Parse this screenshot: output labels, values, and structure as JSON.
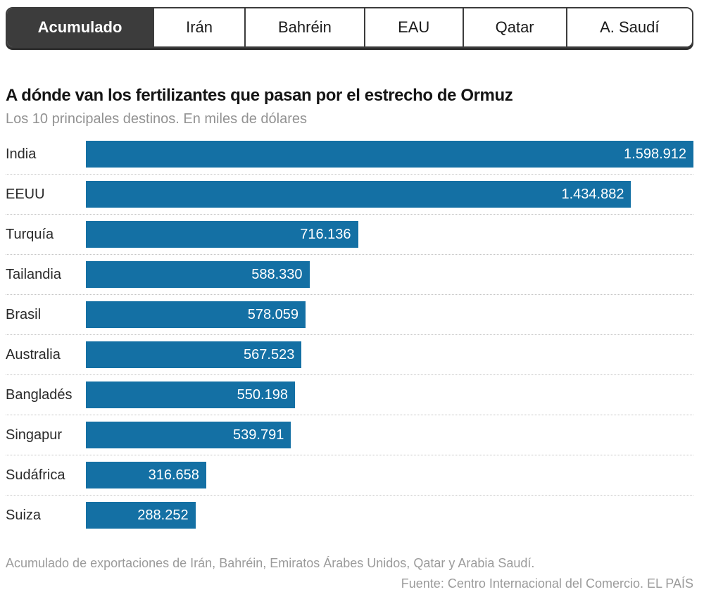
{
  "tabs": [
    {
      "label": "Acumulado",
      "active": true
    },
    {
      "label": "Irán",
      "active": false
    },
    {
      "label": "Bahréin",
      "active": false
    },
    {
      "label": "EAU",
      "active": false
    },
    {
      "label": "Qatar",
      "active": false
    },
    {
      "label": "A. Saudí",
      "active": false
    }
  ],
  "chart_data": {
    "type": "bar",
    "orientation": "horizontal",
    "title": "A dónde van los fertilizantes que pasan por el estrecho de Ormuz",
    "subtitle": "Los 10 principales destinos. En miles de dólares",
    "categories": [
      "India",
      "EEUU",
      "Turquía",
      "Tailandia",
      "Brasil",
      "Australia",
      "Bangladés",
      "Singapur",
      "Sudáfrica",
      "Suiza"
    ],
    "values": [
      1598912,
      1434882,
      716136,
      588330,
      578059,
      567523,
      550198,
      539791,
      316658,
      288252
    ],
    "value_labels": [
      "1.598.912",
      "1.434.882",
      "716.136",
      "588.330",
      "578.059",
      "567.523",
      "550.198",
      "539.791",
      "316.658",
      "288.252"
    ],
    "xlim": [
      0,
      1598912
    ],
    "unit": "miles de dólares",
    "grid": "dotted row separators",
    "legend": "none"
  },
  "footer": {
    "note": "Acumulado de exportaciones de Irán, Bahréin, Emiratos Árabes Unidos, Qatar y Arabia Saudí.",
    "source": "Fuente: Centro Internacional del Comercio. EL PAÍS"
  },
  "colors": {
    "bar": "#1470a4",
    "active_tab_bg": "#3c3c3c",
    "active_tab_text": "#ffffff",
    "tab_border": "#3c3c3c",
    "title_text": "#141414",
    "muted_text": "#9b9b9b",
    "value_label_text": "#ffffff"
  }
}
